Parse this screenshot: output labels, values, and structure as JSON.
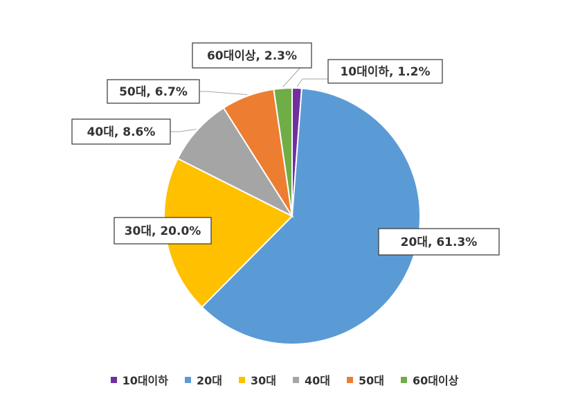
{
  "chart_data": {
    "type": "pie",
    "categories": [
      "10대이하",
      "20대",
      "30대",
      "40대",
      "50대",
      "60대이상"
    ],
    "values": [
      1.2,
      61.3,
      20.0,
      8.6,
      6.7,
      2.3
    ],
    "data_labels": [
      "10대이하, 1.2%",
      "20대, 61.3%",
      "30대, 20.0%",
      "40대, 8.6%",
      "50대, 6.7%",
      "60대이상, 2.3%"
    ],
    "colors": [
      "#7030A0",
      "#5B9BD5",
      "#FFC000",
      "#A5A5A5",
      "#ED7D31",
      "#70AD47"
    ],
    "title": "",
    "legend_position": "bottom"
  },
  "legend": {
    "items": [
      {
        "label": "10대이하",
        "color": "#7030A0"
      },
      {
        "label": "20대",
        "color": "#5B9BD5"
      },
      {
        "label": "30대",
        "color": "#FFC000"
      },
      {
        "label": "40대",
        "color": "#A5A5A5"
      },
      {
        "label": "50대",
        "color": "#ED7D31"
      },
      {
        "label": "60대이상",
        "color": "#70AD47"
      }
    ]
  }
}
